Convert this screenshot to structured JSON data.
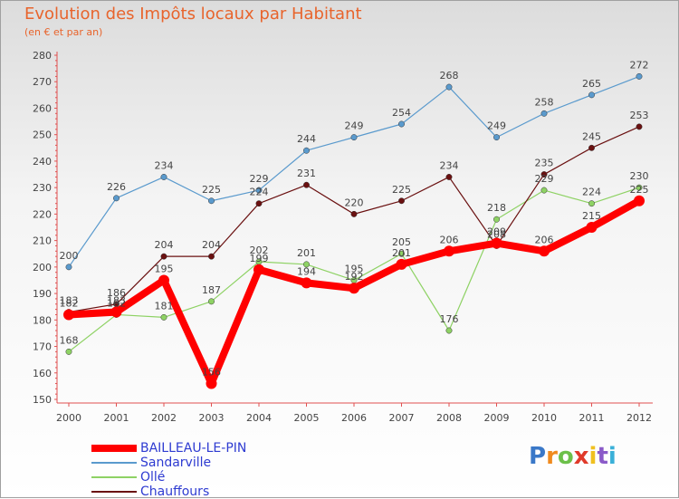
{
  "chart_data": {
    "type": "line",
    "title": "Evolution des Impôts locaux par Habitant",
    "subtitle": "(en € et par an)",
    "xlabel": "",
    "ylabel": "",
    "ylim": [
      150,
      280
    ],
    "yticks": [
      "150",
      "160",
      "170",
      "180",
      "190",
      "200",
      "210",
      "220",
      "230",
      "240",
      "250",
      "260",
      "270",
      "280"
    ],
    "categories": [
      "2000",
      "2001",
      "2002",
      "2003",
      "2004",
      "2005",
      "2006",
      "2007",
      "2008",
      "2009",
      "2010",
      "2011",
      "2012"
    ],
    "grid": false,
    "series": [
      {
        "name": "Sandarville",
        "color": "#5a9acd",
        "values": [
          200,
          226,
          234,
          225,
          229,
          244,
          249,
          254,
          268,
          249,
          258,
          265,
          272
        ]
      },
      {
        "name": "Ollé",
        "color": "#8ed264",
        "values": [
          168,
          182,
          181,
          187,
          202,
          201,
          195,
          205,
          176,
          218,
          229,
          224,
          230
        ]
      },
      {
        "name": "Chauffours",
        "color": "#6a1010",
        "values": [
          183,
          186,
          204,
          204,
          224,
          231,
          220,
          225,
          234,
          208,
          235,
          245,
          253
        ]
      },
      {
        "name": "BAILLEAU-LE-PIN",
        "color": "#ff0000",
        "values": [
          182,
          183,
          195,
          156,
          199,
          194,
          192,
          201,
          206,
          209,
          206,
          215,
          225
        ]
      }
    ]
  },
  "legend": {
    "items": [
      {
        "label": "BAILLEAU-LE-PIN",
        "color": "#ff0000"
      },
      {
        "label": "Sandarville",
        "color": "#5a9acd"
      },
      {
        "label": "Ollé",
        "color": "#8ed264"
      },
      {
        "label": "Chauffours",
        "color": "#6a1010"
      }
    ]
  },
  "brand": {
    "name": "Proxiti",
    "letters": [
      "P",
      "r",
      "o",
      "x",
      "i",
      "t",
      "i"
    ],
    "colors": [
      "#3a78c8",
      "#f08a1e",
      "#6cc04a",
      "#e03a2a",
      "#f0c020",
      "#8a5ac8",
      "#3ab0d8"
    ]
  }
}
